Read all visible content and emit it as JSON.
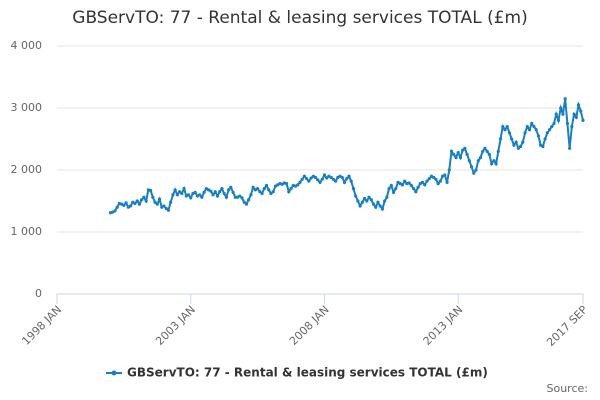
{
  "chart_data": {
    "type": "line",
    "title": "GBServTO: 77 - Rental & leasing services TOTAL (£m)",
    "source": "Source:",
    "x": [
      "2000-01",
      "2000-02",
      "2000-03",
      "2000-04",
      "2000-05",
      "2000-06",
      "2000-07",
      "2000-08",
      "2000-09",
      "2000-10",
      "2000-11",
      "2000-12",
      "2001-01",
      "2001-02",
      "2001-03",
      "2001-04",
      "2001-05",
      "2001-06",
      "2001-07",
      "2001-08",
      "2001-09",
      "2001-10",
      "2001-11",
      "2001-12",
      "2002-01",
      "2002-02",
      "2002-03",
      "2002-04",
      "2002-05",
      "2002-06",
      "2002-07",
      "2002-08",
      "2002-09",
      "2002-10",
      "2002-11",
      "2002-12",
      "2003-01",
      "2003-02",
      "2003-03",
      "2003-04",
      "2003-05",
      "2003-06",
      "2003-07",
      "2003-08",
      "2003-09",
      "2003-10",
      "2003-11",
      "2003-12",
      "2004-01",
      "2004-02",
      "2004-03",
      "2004-04",
      "2004-05",
      "2004-06",
      "2004-07",
      "2004-08",
      "2004-09",
      "2004-10",
      "2004-11",
      "2004-12",
      "2005-01",
      "2005-02",
      "2005-03",
      "2005-04",
      "2005-05",
      "2005-06",
      "2005-07",
      "2005-08",
      "2005-09",
      "2005-10",
      "2005-11",
      "2005-12",
      "2006-01",
      "2006-02",
      "2006-03",
      "2006-04",
      "2006-05",
      "2006-06",
      "2006-07",
      "2006-08",
      "2006-09",
      "2006-10",
      "2006-11",
      "2006-12",
      "2007-01",
      "2007-02",
      "2007-03",
      "2007-04",
      "2007-05",
      "2007-06",
      "2007-07",
      "2007-08",
      "2007-09",
      "2007-10",
      "2007-11",
      "2007-12",
      "2008-01",
      "2008-02",
      "2008-03",
      "2008-04",
      "2008-05",
      "2008-06",
      "2008-07",
      "2008-08",
      "2008-09",
      "2008-10",
      "2008-11",
      "2008-12",
      "2009-01",
      "2009-02",
      "2009-03",
      "2009-04",
      "2009-05",
      "2009-06",
      "2009-07",
      "2009-08",
      "2009-09",
      "2009-10",
      "2009-11",
      "2009-12",
      "2010-01",
      "2010-02",
      "2010-03",
      "2010-04",
      "2010-05",
      "2010-06",
      "2010-07",
      "2010-08",
      "2010-09",
      "2010-10",
      "2010-11",
      "2010-12",
      "2011-01",
      "2011-02",
      "2011-03",
      "2011-04",
      "2011-05",
      "2011-06",
      "2011-07",
      "2011-08",
      "2011-09",
      "2011-10",
      "2011-11",
      "2011-12",
      "2012-01",
      "2012-02",
      "2012-03",
      "2012-04",
      "2012-05",
      "2012-06",
      "2012-07",
      "2012-08",
      "2012-09",
      "2012-10",
      "2012-11",
      "2012-12",
      "2013-01",
      "2013-02",
      "2013-03",
      "2013-04",
      "2013-05",
      "2013-06",
      "2013-07",
      "2013-08",
      "2013-09",
      "2013-10",
      "2013-11",
      "2013-12",
      "2014-01",
      "2014-02",
      "2014-03",
      "2014-04",
      "2014-05",
      "2014-06",
      "2014-07",
      "2014-08",
      "2014-09",
      "2014-10",
      "2014-11",
      "2014-12",
      "2015-01",
      "2015-02",
      "2015-03",
      "2015-04",
      "2015-05",
      "2015-06",
      "2015-07",
      "2015-08",
      "2015-09",
      "2015-10",
      "2015-11",
      "2015-12",
      "2016-01",
      "2016-02",
      "2016-03",
      "2016-04",
      "2016-05",
      "2016-06",
      "2016-07",
      "2016-08",
      "2016-09",
      "2016-10",
      "2016-11",
      "2016-12",
      "2017-01",
      "2017-02",
      "2017-03",
      "2017-04",
      "2017-05",
      "2017-06",
      "2017-07",
      "2017-08",
      "2017-09"
    ],
    "series": [
      {
        "name": "GBServTO: 77 - Rental & leasing services TOTAL (£m)",
        "color": "#1a7fc1",
        "values": [
          1310,
          1320,
          1340,
          1400,
          1460,
          1450,
          1430,
          1470,
          1400,
          1420,
          1480,
          1460,
          1500,
          1450,
          1520,
          1560,
          1500,
          1680,
          1670,
          1560,
          1480,
          1450,
          1530,
          1400,
          1420,
          1380,
          1350,
          1480,
          1600,
          1680,
          1600,
          1650,
          1620,
          1700,
          1580,
          1600,
          1550,
          1620,
          1640,
          1580,
          1600,
          1560,
          1640,
          1700,
          1680,
          1660,
          1600,
          1650,
          1580,
          1650,
          1700,
          1620,
          1560,
          1680,
          1720,
          1640,
          1560,
          1560,
          1580,
          1550,
          1480,
          1450,
          1520,
          1600,
          1720,
          1680,
          1700,
          1650,
          1620,
          1700,
          1750,
          1680,
          1620,
          1650,
          1740,
          1760,
          1780,
          1770,
          1790,
          1780,
          1650,
          1700,
          1750,
          1740,
          1760,
          1800,
          1850,
          1900,
          1860,
          1820,
          1870,
          1900,
          1880,
          1840,
          1800,
          1850,
          1920,
          1870,
          1900,
          1880,
          1850,
          1820,
          1880,
          1900,
          1880,
          1800,
          1860,
          1900,
          1820,
          1700,
          1580,
          1500,
          1420,
          1480,
          1540,
          1500,
          1560,
          1520,
          1450,
          1400,
          1480,
          1420,
          1370,
          1500,
          1560,
          1700,
          1750,
          1640,
          1700,
          1800,
          1780,
          1760,
          1820,
          1780,
          1790,
          1750,
          1700,
          1650,
          1720,
          1780,
          1800,
          1760,
          1820,
          1860,
          1900,
          1880,
          1850,
          1780,
          1820,
          1900,
          1920,
          1800,
          2000,
          2300,
          2250,
          2200,
          2280,
          2200,
          2320,
          2350,
          2250,
          2150,
          2050,
          1950,
          2000,
          2150,
          2200,
          2300,
          2350,
          2300,
          2250,
          2100,
          2150,
          2100,
          2300,
          2500,
          2700,
          2650,
          2700,
          2600,
          2500,
          2400,
          2450,
          2350,
          2380,
          2450,
          2600,
          2700,
          2650,
          2750,
          2700,
          2650,
          2550,
          2400,
          2380,
          2500,
          2600,
          2650,
          2700,
          2750,
          2900,
          2800,
          3000,
          2900,
          3150,
          2750,
          2350,
          2700,
          2900,
          2850,
          3050,
          2950,
          2800
        ]
      }
    ],
    "xlim": [
      "1998-01",
      "2017-09"
    ],
    "xticks": [
      {
        "value": "1998-01",
        "label": "1998 JAN"
      },
      {
        "value": "2003-01",
        "label": "2003 JAN"
      },
      {
        "value": "2008-01",
        "label": "2008 JAN"
      },
      {
        "value": "2013-01",
        "label": "2013 JAN"
      },
      {
        "value": "2017-09",
        "label": "2017 SEP"
      }
    ],
    "ylim": [
      0,
      4000
    ],
    "yticks": [
      0,
      {
        "value": 1000,
        "label": "1 000"
      },
      {
        "value": 2000,
        "label": "2 000"
      },
      {
        "value": 3000,
        "label": "3 000"
      },
      {
        "value": 4000,
        "label": "4 000"
      }
    ],
    "grid": true
  }
}
